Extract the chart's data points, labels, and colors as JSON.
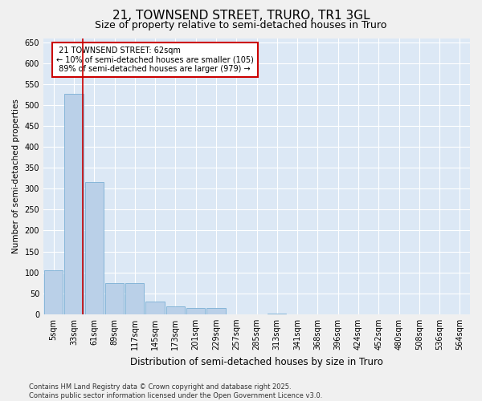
{
  "title": "21, TOWNSEND STREET, TRURO, TR1 3GL",
  "subtitle": "Size of property relative to semi-detached houses in Truro",
  "xlabel": "Distribution of semi-detached houses by size in Truro",
  "ylabel": "Number of semi-detached properties",
  "property_label": "21 TOWNSEND STREET: 62sqm",
  "smaller_pct": "10%",
  "smaller_count": 105,
  "larger_pct": "89%",
  "larger_count": 979,
  "bar_color": "#bad0e8",
  "bar_edge_color": "#7aafd4",
  "vline_color": "#cc0000",
  "bg_color": "#dce8f5",
  "annotation_box_color": "#ffffff",
  "annotation_box_edge": "#cc0000",
  "grid_color": "#ffffff",
  "fig_bg_color": "#f0f0f0",
  "categories": [
    "5sqm",
    "33sqm",
    "61sqm",
    "89sqm",
    "117sqm",
    "145sqm",
    "173sqm",
    "201sqm",
    "229sqm",
    "257sqm",
    "285sqm",
    "313sqm",
    "341sqm",
    "368sqm",
    "396sqm",
    "424sqm",
    "452sqm",
    "480sqm",
    "508sqm",
    "536sqm",
    "564sqm"
  ],
  "values": [
    105,
    527,
    315,
    75,
    75,
    30,
    18,
    15,
    15,
    0,
    0,
    1,
    0,
    0,
    0,
    0,
    0,
    0,
    0,
    0,
    0
  ],
  "vline_x": 1.42,
  "ylim": [
    0,
    660
  ],
  "yticks": [
    0,
    50,
    100,
    150,
    200,
    250,
    300,
    350,
    400,
    450,
    500,
    550,
    600,
    650
  ],
  "footer_line1": "Contains HM Land Registry data © Crown copyright and database right 2025.",
  "footer_line2": "Contains public sector information licensed under the Open Government Licence v3.0.",
  "title_fontsize": 11,
  "subtitle_fontsize": 9,
  "xlabel_fontsize": 8.5,
  "ylabel_fontsize": 7.5,
  "tick_fontsize": 7,
  "footer_fontsize": 6,
  "annot_fontsize": 7
}
